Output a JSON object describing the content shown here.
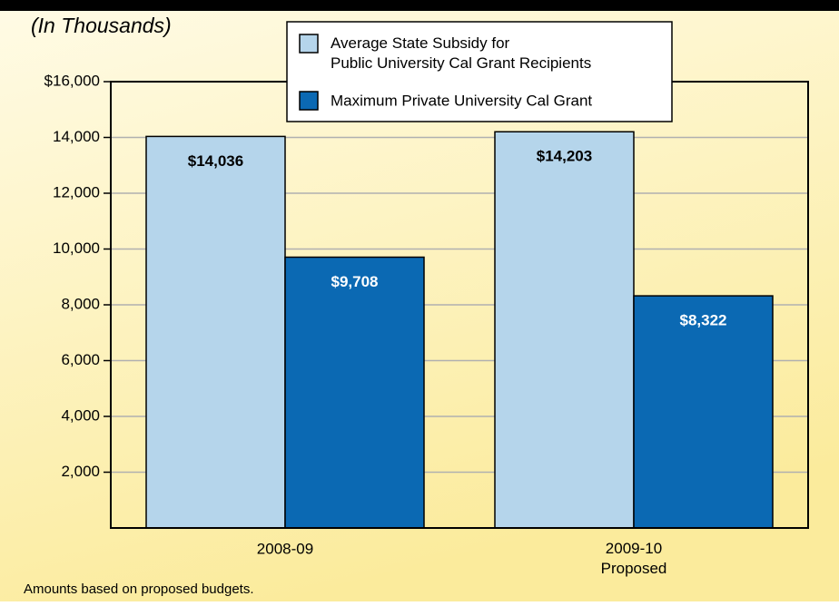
{
  "chart_data": {
    "type": "bar",
    "subtitle": "(In Thousands)",
    "categories": [
      "2008-09",
      "2009-10\nProposed"
    ],
    "series": [
      {
        "name": "Average State Subsidy for\nPublic University Cal Grant Recipients",
        "color": "#b5d5eb",
        "values": [
          14036,
          14203
        ],
        "value_labels": [
          "$14,036",
          "$14,203"
        ]
      },
      {
        "name": "Maximum Private University Cal Grant",
        "color": "#0b69b3",
        "values": [
          9708,
          8322
        ],
        "value_labels": [
          "$9,708",
          "$8,322"
        ]
      }
    ],
    "ylim": [
      0,
      16000
    ],
    "yticks": [
      {
        "value": 2000,
        "label": "2,000"
      },
      {
        "value": 4000,
        "label": "4,000"
      },
      {
        "value": 6000,
        "label": "6,000"
      },
      {
        "value": 8000,
        "label": "8,000"
      },
      {
        "value": 10000,
        "label": "10,000"
      },
      {
        "value": 12000,
        "label": "12,000"
      },
      {
        "value": 14000,
        "label": "14,000"
      },
      {
        "value": 16000,
        "label": "$16,000"
      }
    ],
    "grid": true,
    "legend": "top",
    "note": "Amounts based on proposed budgets."
  }
}
